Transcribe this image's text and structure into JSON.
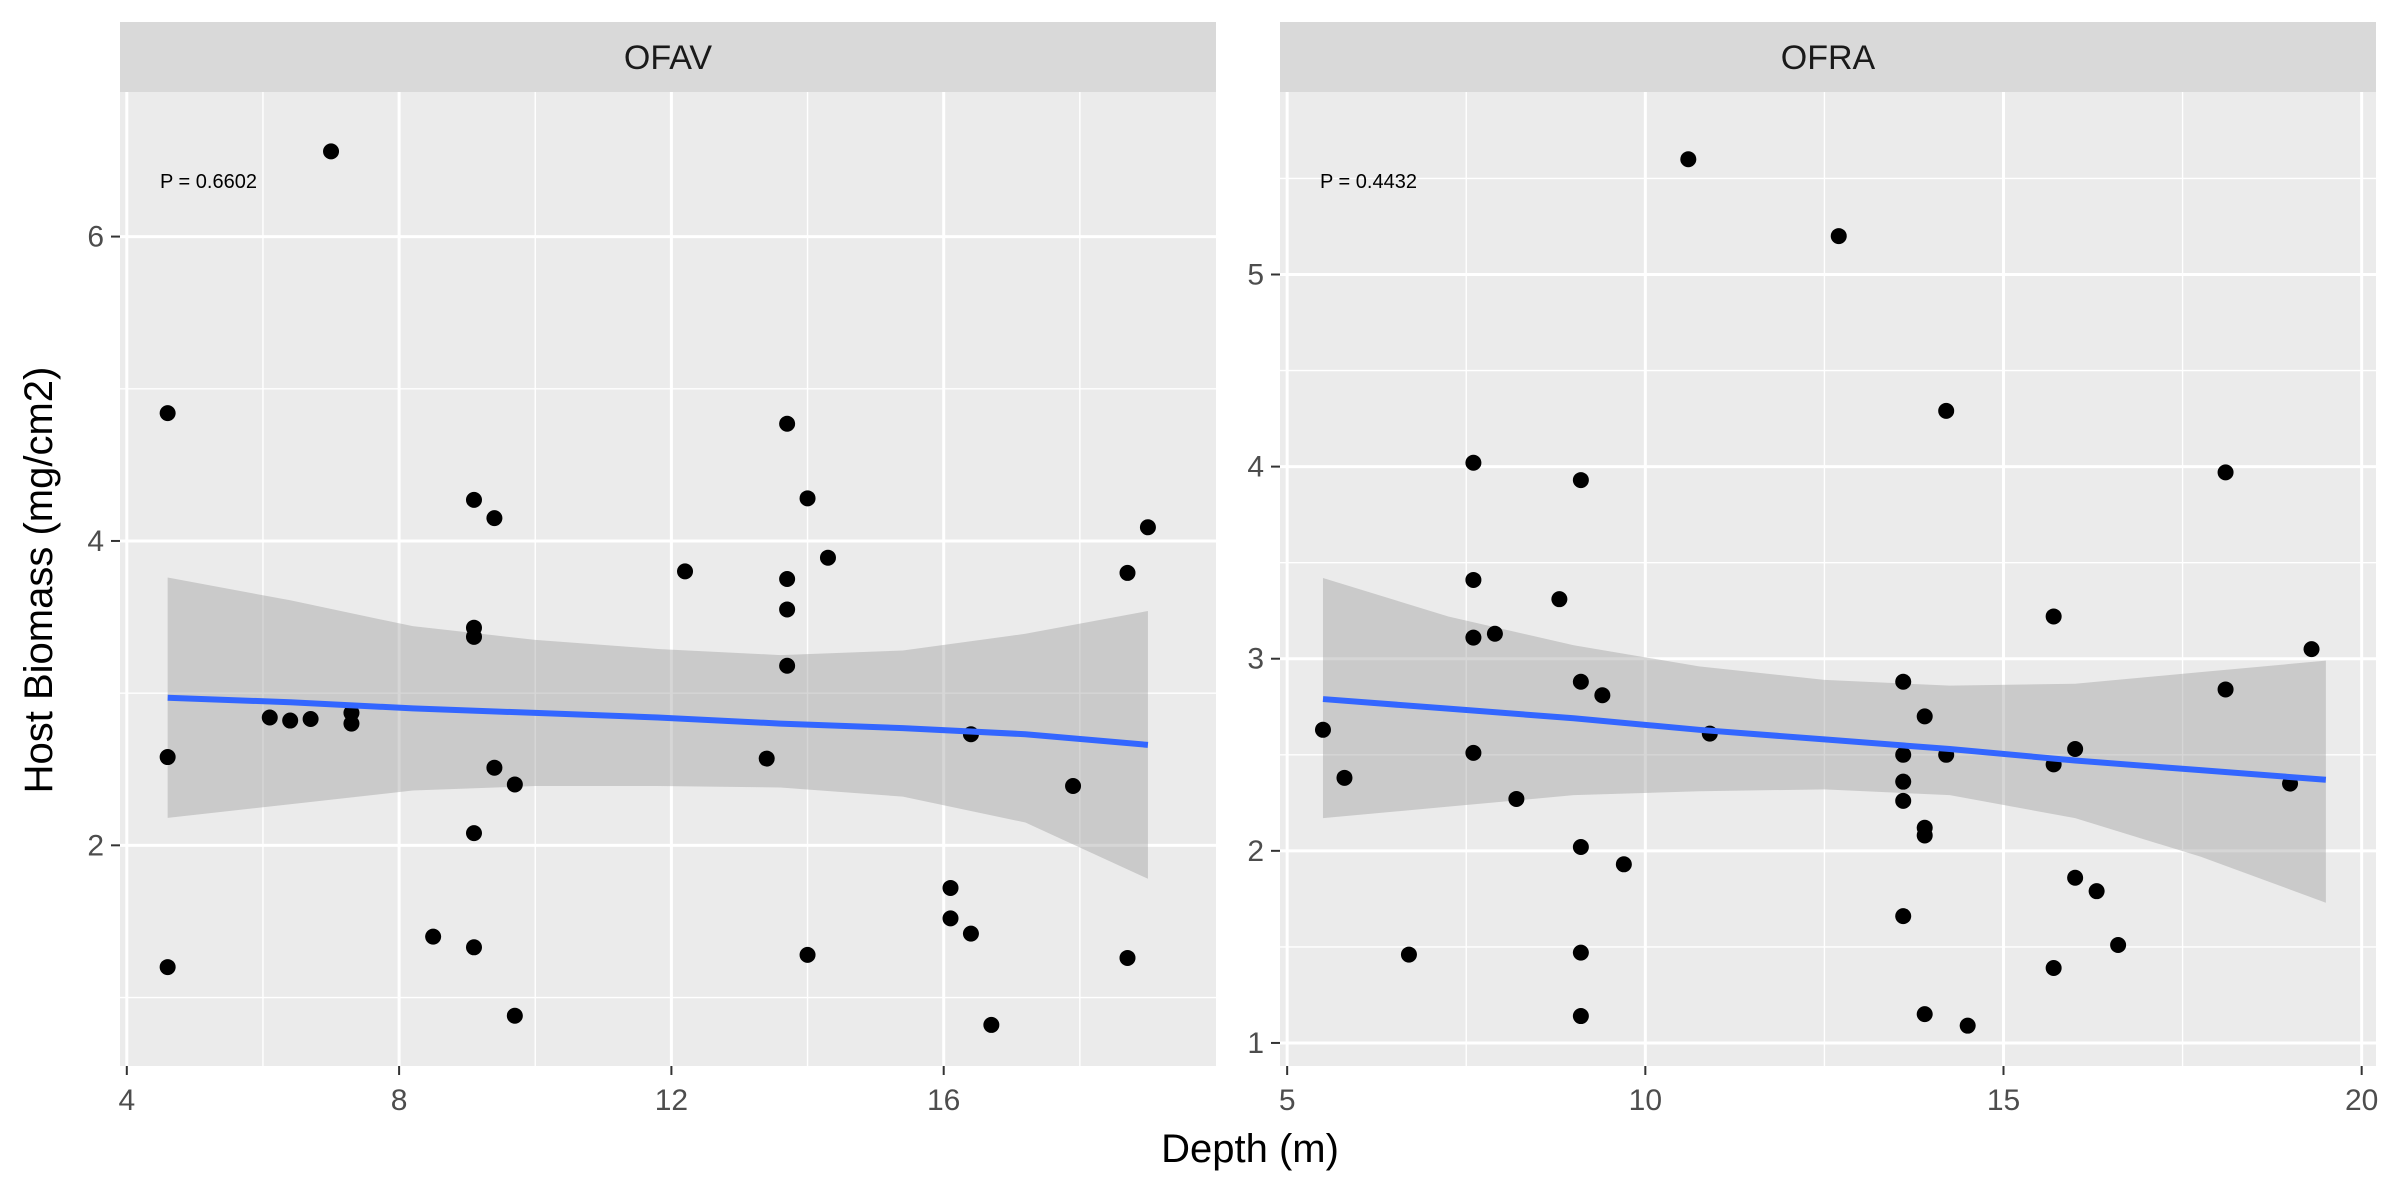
{
  "chart_data": {
    "type": "scatter",
    "xlabel": "Depth (m)",
    "ylabel": "Host Biomass (mg/cm2)",
    "colors": {
      "panel": "#ebebeb",
      "strip": "#d9d9d9",
      "grid": "#ffffff",
      "point": "#000000",
      "fit_line": "#3366ff",
      "ribbon": "#999999"
    },
    "panels": [
      {
        "strip": "OFAV",
        "annotation": "P = 0.6602",
        "xlim": [
          3.9,
          20.0
        ],
        "ylim": [
          0.55,
          6.95
        ],
        "xticks": [
          4,
          8,
          12,
          16
        ],
        "yticks": [
          2,
          4,
          6
        ],
        "tick_labels_x": [
          "4",
          "8",
          "12",
          "16"
        ],
        "tick_labels_y": [
          "2",
          "4",
          "6"
        ],
        "fit": {
          "x": [
            4.6,
            6.4,
            8.2,
            10.0,
            11.8,
            13.6,
            15.4,
            17.2,
            19.0
          ],
          "y": [
            2.97,
            2.94,
            2.9,
            2.87,
            2.84,
            2.8,
            2.77,
            2.73,
            2.66
          ],
          "lower": [
            2.18,
            2.27,
            2.36,
            2.39,
            2.39,
            2.38,
            2.32,
            2.15,
            1.78
          ],
          "upper": [
            3.76,
            3.61,
            3.44,
            3.35,
            3.29,
            3.25,
            3.28,
            3.39,
            3.54
          ]
        },
        "points": [
          {
            "x": 4.6,
            "y": 4.84
          },
          {
            "x": 4.6,
            "y": 2.58
          },
          {
            "x": 4.6,
            "y": 1.2
          },
          {
            "x": 7.0,
            "y": 6.56
          },
          {
            "x": 6.1,
            "y": 2.84
          },
          {
            "x": 6.4,
            "y": 2.82
          },
          {
            "x": 6.7,
            "y": 2.83
          },
          {
            "x": 7.3,
            "y": 2.87
          },
          {
            "x": 7.3,
            "y": 2.8
          },
          {
            "x": 8.5,
            "y": 1.4
          },
          {
            "x": 9.1,
            "y": 4.27
          },
          {
            "x": 9.1,
            "y": 3.43
          },
          {
            "x": 9.1,
            "y": 3.37
          },
          {
            "x": 9.1,
            "y": 2.08
          },
          {
            "x": 9.1,
            "y": 1.33
          },
          {
            "x": 9.4,
            "y": 4.15
          },
          {
            "x": 9.4,
            "y": 2.51
          },
          {
            "x": 9.7,
            "y": 2.4
          },
          {
            "x": 9.7,
            "y": 0.88
          },
          {
            "x": 12.2,
            "y": 3.8
          },
          {
            "x": 13.4,
            "y": 2.57
          },
          {
            "x": 13.7,
            "y": 4.77
          },
          {
            "x": 13.7,
            "y": 3.75
          },
          {
            "x": 13.7,
            "y": 3.55
          },
          {
            "x": 13.7,
            "y": 3.18
          },
          {
            "x": 14.0,
            "y": 4.28
          },
          {
            "x": 14.0,
            "y": 1.28
          },
          {
            "x": 14.3,
            "y": 3.89
          },
          {
            "x": 16.1,
            "y": 1.72
          },
          {
            "x": 16.1,
            "y": 1.52
          },
          {
            "x": 16.4,
            "y": 2.73
          },
          {
            "x": 16.4,
            "y": 1.42
          },
          {
            "x": 16.7,
            "y": 0.82
          },
          {
            "x": 17.9,
            "y": 2.39
          },
          {
            "x": 18.7,
            "y": 3.79
          },
          {
            "x": 18.7,
            "y": 1.26
          },
          {
            "x": 19.0,
            "y": 4.09
          }
        ]
      },
      {
        "strip": "OFRA",
        "annotation": "P = 0.4432",
        "xlim": [
          4.9,
          20.2
        ],
        "ylim": [
          0.88,
          5.95
        ],
        "xticks": [
          5,
          10,
          15,
          20
        ],
        "yticks": [
          1,
          2,
          3,
          4,
          5
        ],
        "tick_labels_x": [
          "5",
          "10",
          "15",
          "20"
        ],
        "tick_labels_y": [
          "1",
          "2",
          "3",
          "4",
          "5"
        ],
        "fit": {
          "x": [
            5.5,
            7.25,
            9.0,
            10.75,
            12.5,
            14.25,
            16.0,
            17.75,
            19.5
          ],
          "y": [
            2.79,
            2.74,
            2.69,
            2.63,
            2.58,
            2.53,
            2.47,
            2.42,
            2.37
          ],
          "lower": [
            2.17,
            2.23,
            2.29,
            2.31,
            2.32,
            2.29,
            2.17,
            1.97,
            1.73
          ],
          "upper": [
            3.42,
            3.22,
            3.07,
            2.96,
            2.89,
            2.86,
            2.87,
            2.93,
            2.99
          ]
        },
        "points": [
          {
            "x": 5.5,
            "y": 2.63
          },
          {
            "x": 5.8,
            "y": 2.38
          },
          {
            "x": 6.7,
            "y": 1.46
          },
          {
            "x": 7.6,
            "y": 4.02
          },
          {
            "x": 7.6,
            "y": 3.41
          },
          {
            "x": 7.6,
            "y": 3.11
          },
          {
            "x": 7.6,
            "y": 2.51
          },
          {
            "x": 7.9,
            "y": 3.13
          },
          {
            "x": 8.2,
            "y": 2.27
          },
          {
            "x": 8.8,
            "y": 3.31
          },
          {
            "x": 9.1,
            "y": 3.93
          },
          {
            "x": 9.1,
            "y": 2.88
          },
          {
            "x": 9.1,
            "y": 2.02
          },
          {
            "x": 9.1,
            "y": 1.47
          },
          {
            "x": 9.1,
            "y": 1.14
          },
          {
            "x": 9.4,
            "y": 2.81
          },
          {
            "x": 9.7,
            "y": 1.93
          },
          {
            "x": 10.6,
            "y": 5.6
          },
          {
            "x": 10.9,
            "y": 2.61
          },
          {
            "x": 12.7,
            "y": 5.2
          },
          {
            "x": 13.6,
            "y": 2.88
          },
          {
            "x": 13.6,
            "y": 2.5
          },
          {
            "x": 13.6,
            "y": 2.36
          },
          {
            "x": 13.6,
            "y": 2.26
          },
          {
            "x": 13.6,
            "y": 1.66
          },
          {
            "x": 13.9,
            "y": 2.7
          },
          {
            "x": 13.9,
            "y": 2.12
          },
          {
            "x": 13.9,
            "y": 2.08
          },
          {
            "x": 13.9,
            "y": 1.15
          },
          {
            "x": 14.2,
            "y": 4.29
          },
          {
            "x": 14.2,
            "y": 2.5
          },
          {
            "x": 14.5,
            "y": 1.09
          },
          {
            "x": 15.7,
            "y": 3.22
          },
          {
            "x": 15.7,
            "y": 2.45
          },
          {
            "x": 15.7,
            "y": 1.39
          },
          {
            "x": 16.0,
            "y": 2.53
          },
          {
            "x": 16.0,
            "y": 1.86
          },
          {
            "x": 16.3,
            "y": 1.79
          },
          {
            "x": 16.6,
            "y": 1.51
          },
          {
            "x": 18.1,
            "y": 3.97
          },
          {
            "x": 18.1,
            "y": 2.84
          },
          {
            "x": 19.0,
            "y": 2.35
          },
          {
            "x": 19.3,
            "y": 3.05
          }
        ]
      }
    ]
  }
}
